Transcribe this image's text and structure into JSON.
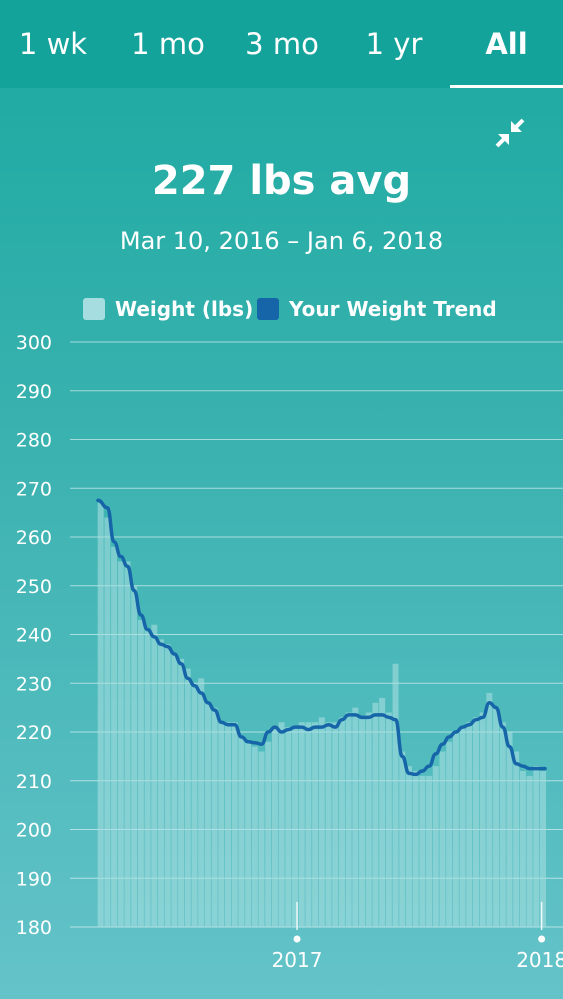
{
  "tabs": [
    {
      "label": "1 wk",
      "active": false
    },
    {
      "label": "1 mo",
      "active": false
    },
    {
      "label": "3 mo",
      "active": false
    },
    {
      "label": "1 yr",
      "active": false
    },
    {
      "label": "All",
      "active": true
    }
  ],
  "icons": {
    "collapse": "collapse-arrows-icon"
  },
  "summary": {
    "headline": "227 lbs avg",
    "date_range": "Mar 10, 2016 – Jan 6, 2018"
  },
  "colors": {
    "weight_bars": "#a6dde0",
    "trend_line": "#1565a8"
  },
  "chart_data": {
    "type": "bar",
    "title": "",
    "xlabel": "",
    "ylabel": "",
    "ylim": [
      180,
      300
    ],
    "yticks": [
      300,
      290,
      280,
      270,
      260,
      250,
      240,
      230,
      220,
      210,
      200,
      190,
      180
    ],
    "xticks": [
      "2017",
      "2018"
    ],
    "x_range": [
      "2016-03-10",
      "2018-01-06"
    ],
    "grid": true,
    "legend": {
      "position": "top-center",
      "entries": [
        "Weight (lbs)",
        "Your Weight Trend"
      ]
    },
    "series": [
      {
        "name": "Weight (lbs)",
        "type": "bar",
        "x": [
          "2016-03-14",
          "2016-03-24",
          "2016-04-03",
          "2016-04-13",
          "2016-04-23",
          "2016-05-03",
          "2016-05-13",
          "2016-05-23",
          "2016-06-02",
          "2016-06-12",
          "2016-06-22",
          "2016-07-02",
          "2016-07-12",
          "2016-07-22",
          "2016-08-01",
          "2016-08-11",
          "2016-08-21",
          "2016-08-31",
          "2016-09-10",
          "2016-09-20",
          "2016-09-30",
          "2016-10-10",
          "2016-10-20",
          "2016-10-30",
          "2016-11-09",
          "2016-11-19",
          "2016-11-29",
          "2016-12-09",
          "2016-12-19",
          "2016-12-29",
          "2017-01-08",
          "2017-01-18",
          "2017-01-28",
          "2017-02-07",
          "2017-02-17",
          "2017-02-27",
          "2017-03-09",
          "2017-03-19",
          "2017-03-29",
          "2017-04-08",
          "2017-04-18",
          "2017-04-28",
          "2017-05-08",
          "2017-05-18",
          "2017-05-28",
          "2017-06-07",
          "2017-06-17",
          "2017-06-27",
          "2017-07-07",
          "2017-07-17",
          "2017-07-27",
          "2017-08-06",
          "2017-08-16",
          "2017-08-26",
          "2017-09-05",
          "2017-09-15",
          "2017-09-25",
          "2017-10-05",
          "2017-10-15",
          "2017-10-25",
          "2017-11-04",
          "2017-11-14",
          "2017-11-24",
          "2017-12-04",
          "2017-12-14",
          "2017-12-24",
          "2018-01-03"
        ],
        "values": [
          267,
          264,
          258,
          255,
          255,
          250,
          243,
          241,
          242,
          239,
          238,
          236,
          235,
          233,
          230,
          231,
          226,
          225,
          222,
          222,
          222,
          219,
          218,
          217,
          216,
          218,
          221,
          222,
          221,
          221,
          222,
          222,
          222,
          223,
          222,
          222,
          223,
          224,
          225,
          223,
          224,
          226,
          227,
          224,
          234,
          216,
          213,
          212,
          211,
          211,
          213,
          216,
          218,
          220,
          221,
          222,
          223,
          224,
          228,
          225,
          222,
          220,
          216,
          212,
          211,
          213,
          212
        ]
      },
      {
        "name": "Your Weight Trend",
        "type": "line",
        "x": [
          "2016-03-10",
          "2016-03-24",
          "2016-04-03",
          "2016-04-13",
          "2016-04-23",
          "2016-05-03",
          "2016-05-13",
          "2016-05-23",
          "2016-06-02",
          "2016-06-12",
          "2016-06-22",
          "2016-07-02",
          "2016-07-12",
          "2016-07-22",
          "2016-08-01",
          "2016-08-11",
          "2016-08-21",
          "2016-08-31",
          "2016-09-10",
          "2016-09-20",
          "2016-09-30",
          "2016-10-10",
          "2016-10-20",
          "2016-10-30",
          "2016-11-09",
          "2016-11-19",
          "2016-11-29",
          "2016-12-09",
          "2016-12-19",
          "2016-12-29",
          "2017-01-08",
          "2017-01-18",
          "2017-01-28",
          "2017-02-07",
          "2017-02-17",
          "2017-02-27",
          "2017-03-09",
          "2017-03-19",
          "2017-03-29",
          "2017-04-08",
          "2017-04-18",
          "2017-04-28",
          "2017-05-08",
          "2017-05-18",
          "2017-05-28",
          "2017-06-07",
          "2017-06-17",
          "2017-06-27",
          "2017-07-07",
          "2017-07-17",
          "2017-07-27",
          "2017-08-06",
          "2017-08-16",
          "2017-08-26",
          "2017-09-05",
          "2017-09-15",
          "2017-09-25",
          "2017-10-05",
          "2017-10-15",
          "2017-10-25",
          "2017-11-04",
          "2017-11-14",
          "2017-11-24",
          "2017-12-04",
          "2017-12-14",
          "2017-12-24",
          "2018-01-06"
        ],
        "values": [
          267.5,
          266,
          259,
          256,
          254,
          249,
          244,
          241,
          239.5,
          238,
          237.5,
          236,
          234,
          231,
          229.5,
          228,
          226,
          224.5,
          222,
          221.5,
          221.5,
          219,
          218,
          217.8,
          217.5,
          220,
          221,
          220,
          220.5,
          221,
          221,
          220.5,
          221,
          221,
          221.5,
          221,
          222.5,
          223.5,
          223.5,
          223,
          223,
          223.5,
          223.5,
          223,
          222.5,
          215,
          211.5,
          211.3,
          212,
          213,
          215.5,
          217.5,
          219,
          220,
          221,
          221.5,
          222.5,
          223,
          226,
          225,
          221,
          217,
          213.5,
          213,
          212.5,
          212.5,
          212.5
        ]
      }
    ]
  }
}
